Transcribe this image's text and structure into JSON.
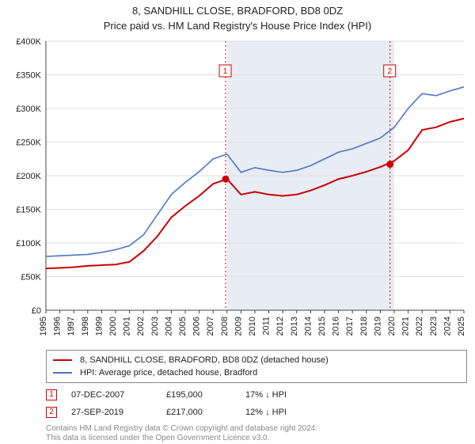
{
  "title": "8, SANDHILL CLOSE, BRADFORD, BD8 0DZ",
  "subtitle": "Price paid vs. HM Land Registry's House Price Index (HPI)",
  "chart": {
    "type": "line",
    "background_color": "#ffffff",
    "grid_color": "#e0e0e0",
    "axis_color": "#444444",
    "highlight_band_color": "#e8ecf4",
    "highlight_band_start_year": 2008,
    "highlight_band_end_year": 2020,
    "x_years": [
      1995,
      1996,
      1997,
      1998,
      1999,
      2000,
      2001,
      2002,
      2003,
      2004,
      2005,
      2006,
      2007,
      2008,
      2009,
      2010,
      2011,
      2012,
      2013,
      2014,
      2015,
      2016,
      2017,
      2018,
      2019,
      2020,
      2021,
      2022,
      2023,
      2024,
      2025
    ],
    "ylim": [
      0,
      400000
    ],
    "ytick_step": 50000,
    "ytick_labels": [
      "£0",
      "£50K",
      "£100K",
      "£150K",
      "£200K",
      "£250K",
      "£300K",
      "£350K",
      "£400K"
    ],
    "series": [
      {
        "label": "8, SANDHILL CLOSE, BRADFORD, BD8 0DZ (detached house)",
        "color": "#cc0000",
        "line_width": 2,
        "values": [
          62000,
          63000,
          64000,
          66000,
          67000,
          68000,
          72000,
          88000,
          110000,
          138000,
          155000,
          170000,
          188000,
          195000,
          172000,
          176000,
          172000,
          170000,
          172000,
          178000,
          186000,
          195000,
          200000,
          206000,
          213000,
          222000,
          238000,
          268000,
          272000,
          280000,
          285000
        ]
      },
      {
        "label": "HPI: Average price, detached house, Bradford",
        "color": "#4a77c4",
        "line_width": 1.6,
        "values": [
          80000,
          81000,
          82000,
          83000,
          86000,
          90000,
          96000,
          112000,
          142000,
          172000,
          190000,
          206000,
          225000,
          232000,
          205000,
          212000,
          208000,
          205000,
          208000,
          215000,
          225000,
          235000,
          240000,
          248000,
          256000,
          272000,
          300000,
          322000,
          319000,
          326000,
          332000
        ]
      }
    ],
    "sale_markers": [
      {
        "n": "1",
        "year": 2007.9,
        "price": 195000,
        "color": "#cc0000"
      },
      {
        "n": "2",
        "year": 2019.7,
        "price": 217000,
        "color": "#cc0000"
      }
    ]
  },
  "legend": [
    {
      "color": "#cc0000",
      "label": "8, SANDHILL CLOSE, BRADFORD, BD8 0DZ (detached house)"
    },
    {
      "color": "#4a77c4",
      "label": "HPI: Average price, detached house, Bradford"
    }
  ],
  "sales": [
    {
      "n": "1",
      "color": "#cc0000",
      "date": "07-DEC-2007",
      "price": "£195,000",
      "delta": "17% ↓ HPI"
    },
    {
      "n": "2",
      "color": "#cc0000",
      "date": "27-SEP-2019",
      "price": "£217,000",
      "delta": "12% ↓ HPI"
    }
  ],
  "footer_line1": "Contains HM Land Registry data © Crown copyright and database right 2024.",
  "footer_line2": "This data is licensed under the Open Government Licence v3.0."
}
